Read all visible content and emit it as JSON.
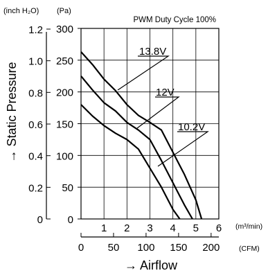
{
  "chart_data": {
    "type": "line",
    "title": "PWM Duty Cycle 100%",
    "x_label": "→ Airflow",
    "y_label": "→ Static Pressure",
    "x_unit_primary": "(m³/min)",
    "x_unit_secondary": "(CFM)",
    "y_unit_primary": "(Pa)",
    "y_unit_secondary": "(inch H₂O)",
    "xlim": [
      0,
      6
    ],
    "ylim": [
      0,
      300
    ],
    "x_ticks": [
      "1",
      "2",
      "3",
      "4",
      "5",
      "6"
    ],
    "x_ticks_secondary": [
      "0",
      "50",
      "100",
      "150",
      "200"
    ],
    "y_ticks": [
      "0",
      "50",
      "100",
      "150",
      "200",
      "250",
      "300"
    ],
    "y_ticks_secondary": [
      "0",
      "0.2",
      "0.4",
      "0.6",
      "0.8",
      "1.0",
      "1.2"
    ],
    "grid": true,
    "series": [
      {
        "name": "13.8V",
        "x": [
          0,
          0.5,
          1,
          1.5,
          2,
          2.5,
          3,
          3.5,
          4,
          4.5,
          5,
          5.25
        ],
        "y": [
          263,
          243,
          220,
          202,
          180,
          163,
          152,
          140,
          105,
          70,
          30,
          0
        ]
      },
      {
        "name": "12V",
        "x": [
          0,
          0.5,
          1,
          1.5,
          2,
          2.5,
          3,
          3.5,
          4,
          4.5,
          4.85
        ],
        "y": [
          225,
          203,
          183,
          170,
          152,
          140,
          125,
          92,
          57,
          22,
          0
        ]
      },
      {
        "name": "10.2V",
        "x": [
          0,
          0.5,
          1,
          1.5,
          2,
          2.5,
          3,
          3.5,
          4,
          4.3
        ],
        "y": [
          180,
          162,
          147,
          135,
          125,
          110,
          80,
          50,
          15,
          0
        ]
      }
    ],
    "annotations": [
      "13.8V",
      "12V",
      "10.2V"
    ]
  }
}
